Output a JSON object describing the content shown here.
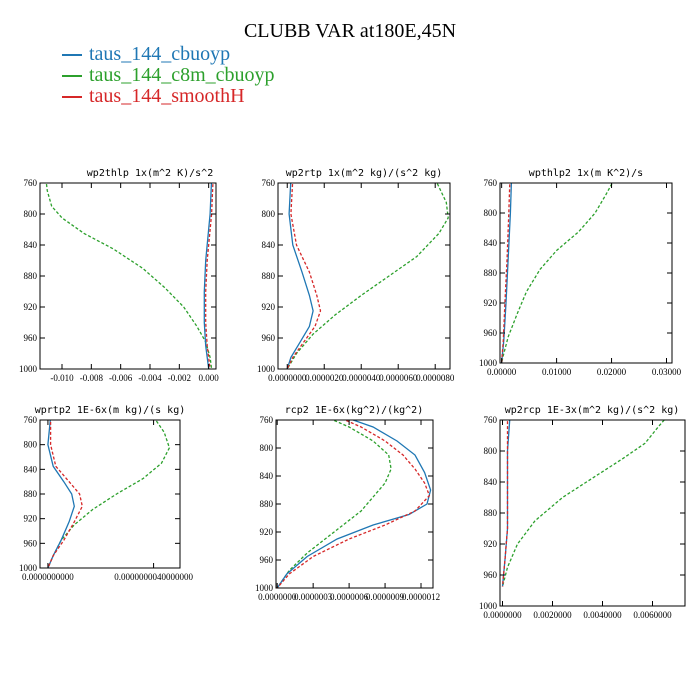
{
  "figure_title": "CLUBB VAR at180E,45N",
  "legend": [
    {
      "label": "taus_144_cbuoyp",
      "color": "#1f77b4"
    },
    {
      "label": "taus_144_c8m_cbuoyp",
      "color": "#2ca02c"
    },
    {
      "label": "taus_144_smoothH",
      "color": "#d62728"
    }
  ],
  "chart_data": [
    {
      "type": "line",
      "title": "wp2thlp  1x(m^2 K)/s^2",
      "xlim": [
        -0.0115,
        0.0005
      ],
      "ylim": [
        760,
        1000
      ],
      "xticks": [
        -0.01,
        -0.008,
        -0.006,
        -0.004,
        -0.002,
        0.0
      ],
      "xtick_labels": [
        "-0.010",
        "-0.008",
        "-0.006",
        "-0.004",
        "-0.002",
        "0.000"
      ],
      "yticks": [
        760,
        800,
        840,
        880,
        920,
        960,
        1000
      ],
      "ytick_labels": [
        "760",
        "800",
        "840",
        "880",
        "920",
        "960",
        "1000"
      ],
      "series": [
        {
          "name": "taus_144_c8m_cbuoyp",
          "color": "#2ca02c",
          "dash": true,
          "points": [
            [
              -0.0111,
              755
            ],
            [
              -0.011,
              770
            ],
            [
              -0.0107,
              790
            ],
            [
              -0.01,
              805
            ],
            [
              -0.0085,
              825
            ],
            [
              -0.0065,
              845
            ],
            [
              -0.0045,
              870
            ],
            [
              -0.003,
              895
            ],
            [
              -0.0017,
              920
            ],
            [
              -0.0008,
              945
            ],
            [
              -0.0002,
              965
            ],
            [
              0.0001,
              985
            ],
            [
              0.0002,
              1000
            ]
          ]
        },
        {
          "name": "taus_144_cbuoyp",
          "color": "#1f77b4",
          "dash": false,
          "points": [
            [
              0.0002,
              755
            ],
            [
              0.0001,
              800
            ],
            [
              -0.0002,
              860
            ],
            [
              -0.0003,
              900
            ],
            [
              -0.0003,
              940
            ],
            [
              -0.0002,
              970
            ],
            [
              0.0,
              1000
            ]
          ]
        },
        {
          "name": "taus_144_smoothH",
          "color": "#d62728",
          "dash": true,
          "points": [
            [
              0.0003,
              755
            ],
            [
              0.0002,
              800
            ],
            [
              -0.0001,
              860
            ],
            [
              -0.0002,
              900
            ],
            [
              -0.0002,
              940
            ],
            [
              -0.0001,
              970
            ],
            [
              0.0001,
              1000
            ]
          ]
        }
      ]
    },
    {
      "type": "line",
      "title": "wp2rtp  1x(m^2 kg)/(s^2 kg)",
      "xlim": [
        -5e-07,
        8.8e-06
      ],
      "ylim": [
        760,
        1000
      ],
      "xticks": [
        0.0,
        2e-06,
        4e-06,
        6e-06,
        8e-06
      ],
      "xtick_labels": [
        "0.0000000",
        "0.0000020",
        "0.0000040",
        "0.0000060",
        "0.0000080"
      ],
      "yticks": [
        760,
        800,
        840,
        880,
        920,
        960,
        1000
      ],
      "ytick_labels": [
        "760",
        "800",
        "840",
        "880",
        "920",
        "960",
        "1000"
      ],
      "series": [
        {
          "name": "taus_144_c8m_cbuoyp",
          "color": "#2ca02c",
          "dash": true,
          "points": [
            [
              8e-06,
              755
            ],
            [
              8.6e-06,
              785
            ],
            [
              8.7e-06,
              805
            ],
            [
              8.2e-06,
              825
            ],
            [
              7e-06,
              855
            ],
            [
              5.5e-06,
              880
            ],
            [
              4e-06,
              905
            ],
            [
              2.6e-06,
              930
            ],
            [
              1.4e-06,
              955
            ],
            [
              5e-07,
              980
            ],
            [
              0.0,
              1000
            ]
          ]
        },
        {
          "name": "taus_144_cbuoyp",
          "color": "#1f77b4",
          "dash": false,
          "points": [
            [
              2e-07,
              755
            ],
            [
              1e-07,
              800
            ],
            [
              3e-07,
              840
            ],
            [
              8e-07,
              875
            ],
            [
              1.2e-06,
              905
            ],
            [
              1.4e-06,
              925
            ],
            [
              1.2e-06,
              945
            ],
            [
              7e-07,
              965
            ],
            [
              2e-07,
              985
            ],
            [
              0.0,
              1000
            ]
          ]
        },
        {
          "name": "taus_144_smoothH",
          "color": "#d62728",
          "dash": true,
          "points": [
            [
              3e-07,
              755
            ],
            [
              2e-07,
              800
            ],
            [
              5e-07,
              840
            ],
            [
              1.2e-06,
              875
            ],
            [
              1.6e-06,
              905
            ],
            [
              1.8e-06,
              925
            ],
            [
              1.5e-06,
              945
            ],
            [
              9e-07,
              965
            ],
            [
              3e-07,
              985
            ],
            [
              0.0,
              1000
            ]
          ]
        }
      ]
    },
    {
      "type": "line",
      "title": "wpthlp2  1x(m K^2)/s",
      "xlim": [
        -0.0003,
        0.031
      ],
      "ylim": [
        760,
        1000
      ],
      "xticks": [
        0.0,
        0.01,
        0.02,
        0.03
      ],
      "xtick_labels": [
        "0.00000",
        "0.01000",
        "0.02000",
        "0.03000"
      ],
      "yticks": [
        760,
        800,
        840,
        880,
        920,
        960,
        1000
      ],
      "ytick_labels": [
        "760",
        "800",
        "840",
        "880",
        "920",
        "960",
        "1000"
      ],
      "series": [
        {
          "name": "taus_144_c8m_cbuoyp",
          "color": "#2ca02c",
          "dash": true,
          "points": [
            [
              0.0205,
              755
            ],
            [
              0.019,
              775
            ],
            [
              0.017,
              800
            ],
            [
              0.014,
              825
            ],
            [
              0.01,
              850
            ],
            [
              0.007,
              875
            ],
            [
              0.0045,
              905
            ],
            [
              0.0028,
              935
            ],
            [
              0.0012,
              965
            ],
            [
              0.0003,
              990
            ],
            [
              0.0,
              1000
            ]
          ]
        },
        {
          "name": "taus_144_cbuoyp",
          "color": "#1f77b4",
          "dash": false,
          "points": [
            [
              0.0018,
              755
            ],
            [
              0.0016,
              800
            ],
            [
              0.0012,
              860
            ],
            [
              0.0008,
              920
            ],
            [
              0.0004,
              970
            ],
            [
              0.0,
              1000
            ]
          ]
        },
        {
          "name": "taus_144_smoothH",
          "color": "#d62728",
          "dash": true,
          "points": [
            [
              0.0015,
              755
            ],
            [
              0.0013,
              800
            ],
            [
              0.001,
              860
            ],
            [
              0.0006,
              920
            ],
            [
              0.0003,
              970
            ],
            [
              0.0,
              1000
            ]
          ]
        }
      ]
    },
    {
      "type": "line",
      "title": "wprtp2  1E-6x(m kg)/(s kg)",
      "xlim": [
        -3e-10,
        5e-09
      ],
      "ylim": [
        760,
        1000
      ],
      "xticks": [
        0.0,
        4e-09
      ],
      "xtick_labels": [
        "0.0000000000",
        "0.0000000040000000"
      ],
      "yticks": [
        760,
        800,
        840,
        880,
        920,
        960,
        1000
      ],
      "ytick_labels": [
        "760",
        "800",
        "840",
        "880",
        "920",
        "960",
        "1000"
      ],
      "series": [
        {
          "name": "taus_144_c8m_cbuoyp",
          "color": "#2ca02c",
          "dash": true,
          "points": [
            [
              4e-09,
              755
            ],
            [
              4.4e-09,
              780
            ],
            [
              4.6e-09,
              805
            ],
            [
              4.3e-09,
              830
            ],
            [
              3.6e-09,
              855
            ],
            [
              2.6e-09,
              880
            ],
            [
              1.7e-09,
              905
            ],
            [
              1e-09,
              930
            ],
            [
              5e-10,
              955
            ],
            [
              2e-10,
              980
            ],
            [
              0.0,
              1000
            ]
          ]
        },
        {
          "name": "taus_144_cbuoyp",
          "color": "#1f77b4",
          "dash": false,
          "points": [
            [
              1e-10,
              755
            ],
            [
              0.0,
              800
            ],
            [
              2e-10,
              835
            ],
            [
              6e-10,
              860
            ],
            [
              9e-10,
              880
            ],
            [
              1e-09,
              900
            ],
            [
              8e-10,
              925
            ],
            [
              5e-10,
              955
            ],
            [
              2e-10,
              980
            ],
            [
              0.0,
              1000
            ]
          ]
        },
        {
          "name": "taus_144_smoothH",
          "color": "#d62728",
          "dash": true,
          "points": [
            [
              1e-10,
              755
            ],
            [
              1e-10,
              800
            ],
            [
              3e-10,
              835
            ],
            [
              8e-10,
              860
            ],
            [
              1.2e-09,
              880
            ],
            [
              1.3e-09,
              900
            ],
            [
              1e-09,
              925
            ],
            [
              6e-10,
              955
            ],
            [
              2e-10,
              980
            ],
            [
              0.0,
              1000
            ]
          ]
        }
      ]
    },
    {
      "type": "line",
      "title": "rcp2  1E-6x(kg^2)/(kg^2)",
      "xlim": [
        -1e-08,
        1.3e-06
      ],
      "ylim": [
        760,
        1000
      ],
      "xticks": [
        0.0,
        3e-07,
        6e-07,
        9e-07,
        1.2e-06
      ],
      "xtick_labels": [
        "0.0000000",
        "0.0000003",
        "0.0000006",
        "0.0000009",
        "0.0000012"
      ],
      "yticks": [
        760,
        800,
        840,
        880,
        920,
        960,
        1000
      ],
      "ytick_labels": [
        "760",
        "800",
        "840",
        "880",
        "920",
        "960",
        "1000"
      ],
      "series": [
        {
          "name": "taus_144_c8m_cbuoyp",
          "color": "#2ca02c",
          "dash": true,
          "points": [
            [
              4e-07,
              755
            ],
            [
              6e-07,
              770
            ],
            [
              8e-07,
              790
            ],
            [
              9.3e-07,
              810
            ],
            [
              9.5e-07,
              830
            ],
            [
              9e-07,
              850
            ],
            [
              8e-07,
              870
            ],
            [
              7e-07,
              890
            ],
            [
              5.5e-07,
              910
            ],
            [
              4e-07,
              930
            ],
            [
              2.5e-07,
              950
            ],
            [
              1e-07,
              975
            ],
            [
              0.0,
              1000
            ]
          ]
        },
        {
          "name": "taus_144_cbuoyp",
          "color": "#1f77b4",
          "dash": false,
          "points": [
            [
              5.5e-07,
              755
            ],
            [
              8e-07,
              770
            ],
            [
              1e-06,
              790
            ],
            [
              1.15e-06,
              810
            ],
            [
              1.23e-06,
              835
            ],
            [
              1.28e-06,
              860
            ],
            [
              1.25e-06,
              880
            ],
            [
              1.1e-06,
              895
            ],
            [
              8e-07,
              910
            ],
            [
              5e-07,
              930
            ],
            [
              2.5e-07,
              955
            ],
            [
              8e-08,
              980
            ],
            [
              0.0,
              1000
            ]
          ]
        },
        {
          "name": "taus_144_smoothH",
          "color": "#d62728",
          "dash": true,
          "points": [
            [
              5e-07,
              755
            ],
            [
              7e-07,
              770
            ],
            [
              9e-07,
              790
            ],
            [
              1.05e-06,
              810
            ],
            [
              1.15e-06,
              830
            ],
            [
              1.23e-06,
              850
            ],
            [
              1.27e-06,
              868
            ],
            [
              1.15e-06,
              890
            ],
            [
              9e-07,
              910
            ],
            [
              6e-07,
              930
            ],
            [
              3e-07,
              955
            ],
            [
              1e-07,
              980
            ],
            [
              0.0,
              1000
            ]
          ]
        }
      ]
    },
    {
      "type": "line",
      "title": "wp2rcp  1E-3x(m^2 kg)/(s^2 kg)",
      "xlim": [
        -0.0001,
        0.0073
      ],
      "ylim": [
        760,
        1000
      ],
      "xticks": [
        0.0,
        0.002,
        0.004,
        0.006
      ],
      "xtick_labels": [
        "0.0000000",
        "0.0020000",
        "0.0040000",
        "0.0060000"
      ],
      "yticks": [
        760,
        800,
        840,
        880,
        920,
        960,
        1000
      ],
      "ytick_labels": [
        "760",
        "800",
        "840",
        "880",
        "920",
        "960",
        "1000"
      ],
      "series": [
        {
          "name": "taus_144_c8m_cbuoyp",
          "color": "#2ca02c",
          "dash": true,
          "points": [
            [
              0.0066,
              755
            ],
            [
              0.0062,
              770
            ],
            [
              0.0057,
              790
            ],
            [
              0.0048,
              810
            ],
            [
              0.0036,
              835
            ],
            [
              0.0024,
              860
            ],
            [
              0.0013,
              890
            ],
            [
              0.0006,
              920
            ],
            [
              0.0002,
              950
            ],
            [
              0.0,
              975
            ]
          ]
        },
        {
          "name": "taus_144_cbuoyp",
          "color": "#1f77b4",
          "dash": false,
          "points": [
            [
              0.0003,
              755
            ],
            [
              0.0002,
              800
            ],
            [
              0.0002,
              850
            ],
            [
              0.0002,
              900
            ],
            [
              0.0001,
              940
            ],
            [
              0.0,
              975
            ]
          ]
        },
        {
          "name": "taus_144_smoothH",
          "color": "#d62728",
          "dash": true,
          "points": [
            [
              0.0002,
              755
            ],
            [
              0.0002,
              800
            ],
            [
              0.0002,
              850
            ],
            [
              0.0002,
              900
            ],
            [
              0.0001,
              940
            ],
            [
              0.0,
              975
            ]
          ]
        }
      ]
    }
  ]
}
